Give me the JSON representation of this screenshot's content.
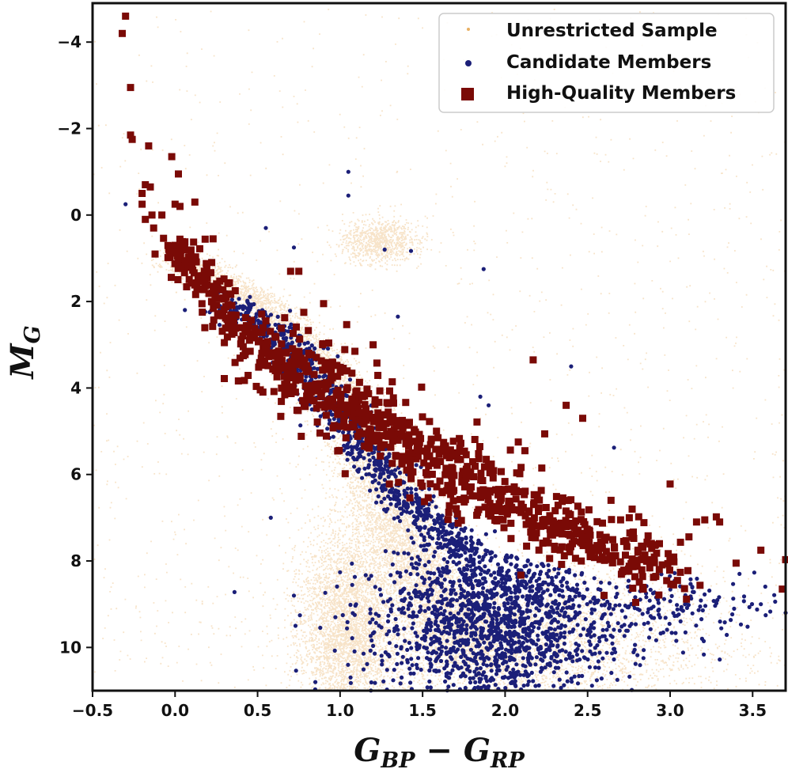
{
  "chart_data": {
    "type": "scatter",
    "title": "",
    "xlabel": "G_BP − G_RP",
    "ylabel": "M_G",
    "xlabel_parts": {
      "main1": "G",
      "sub1": "BP",
      "minus": " − ",
      "main2": "G",
      "sub2": "RP"
    },
    "ylabel_parts": {
      "main": "M",
      "sub": "G"
    },
    "xlim": [
      -0.5,
      3.7
    ],
    "ylim": [
      11.0,
      -4.9
    ],
    "y_inverted": true,
    "xticks": [
      -0.5,
      0.0,
      0.5,
      1.0,
      1.5,
      2.0,
      2.5,
      3.0,
      3.5
    ],
    "xtick_labels": [
      "−0.5",
      "0.0",
      "0.5",
      "1.0",
      "1.5",
      "2.0",
      "2.5",
      "3.0",
      "3.5"
    ],
    "yticks": [
      -4,
      -2,
      0,
      2,
      4,
      6,
      8,
      10
    ],
    "ytick_labels": [
      "−4",
      "−2",
      "0",
      "2",
      "4",
      "6",
      "8",
      "10"
    ],
    "grid": false,
    "legend_position": "top-right",
    "legend": [
      {
        "label": "Unrestricted Sample",
        "marker": "dot-small",
        "color": "#e8b062"
      },
      {
        "label": "Candidate Members",
        "marker": "circle",
        "color": "#1b1f78"
      },
      {
        "label": "High-Quality Members",
        "marker": "square",
        "color": "#7a0a06"
      }
    ],
    "series": [
      {
        "name": "Unrestricted Sample",
        "color": "#e8b062",
        "marker": "dot-small",
        "density_regions": [
          {
            "label": "main sequence",
            "ridge": [
              [
                0.0,
                1.0
              ],
              [
                0.5,
                2.0
              ],
              [
                0.8,
                3.2
              ],
              [
                1.0,
                4.2
              ],
              [
                1.2,
                5.5
              ],
              [
                1.3,
                6.5
              ],
              [
                1.4,
                7.5
              ],
              [
                1.5,
                8.5
              ],
              [
                1.7,
                9.5
              ],
              [
                1.9,
                10.5
              ]
            ],
            "spread": 0.12
          },
          {
            "label": "white dwarf / faint blue tail",
            "center": [
              1.05,
              9.5
            ],
            "spread_x": 0.15,
            "spread_y": 1.2
          },
          {
            "label": "red clump",
            "center": [
              1.25,
              0.6
            ],
            "spread_x": 0.12,
            "spread_y": 0.25
          },
          {
            "label": "faint red",
            "center": [
              2.1,
              9.8
            ],
            "spread_x": 0.55,
            "spread_y": 0.9
          }
        ]
      },
      {
        "name": "Candidate Members",
        "color": "#1b1f78",
        "marker": "circle",
        "points": [
          [
            -0.3,
            -0.25
          ],
          [
            0.55,
            0.3
          ],
          [
            0.72,
            0.75
          ],
          [
            1.05,
            -1.0
          ],
          [
            1.05,
            -0.45
          ],
          [
            1.27,
            0.8
          ],
          [
            1.43,
            0.83
          ],
          [
            1.87,
            1.25
          ],
          [
            1.35,
            2.35
          ],
          [
            2.4,
            3.5
          ],
          [
            1.85,
            4.2
          ],
          [
            1.9,
            4.4
          ],
          [
            2.66,
            5.38
          ],
          [
            0.36,
            8.72
          ],
          [
            0.58,
            7.0
          ],
          [
            0.72,
            8.8
          ],
          [
            0.73,
            9.5
          ],
          [
            0.85,
            10.8
          ],
          [
            1.9,
            10.9
          ],
          [
            3.55,
            9.0
          ],
          [
            3.7,
            9.2
          ]
        ],
        "clusters": [
          {
            "label": "main sequence members",
            "ridge": [
              [
                0.3,
                2.0
              ],
              [
                0.6,
                2.7
              ],
              [
                0.8,
                3.5
              ],
              [
                1.0,
                4.6
              ],
              [
                1.2,
                5.7
              ],
              [
                1.4,
                6.6
              ],
              [
                1.6,
                7.3
              ],
              [
                1.8,
                7.9
              ]
            ],
            "spread": 0.08
          },
          {
            "label": "faint members",
            "center": [
              1.95,
              9.4
            ],
            "spread_x": 0.38,
            "spread_y": 1.0
          },
          {
            "label": "faint red tail",
            "center": [
              3.0,
              9.1
            ],
            "spread_x": 0.35,
            "spread_y": 0.4
          }
        ]
      },
      {
        "name": "High-Quality Members",
        "color": "#7a0a06",
        "marker": "square",
        "points": [
          [
            -0.3,
            -4.6
          ],
          [
            -0.32,
            -4.2
          ],
          [
            -0.27,
            -2.95
          ],
          [
            -0.27,
            -1.85
          ],
          [
            -0.26,
            -1.75
          ],
          [
            -0.16,
            -1.6
          ],
          [
            -0.02,
            -1.35
          ],
          [
            0.02,
            -0.95
          ],
          [
            -0.18,
            -0.7
          ],
          [
            -0.15,
            -0.65
          ],
          [
            -0.2,
            -0.5
          ],
          [
            -0.2,
            -0.25
          ],
          [
            0.12,
            -0.3
          ],
          [
            0.0,
            -0.25
          ],
          [
            0.03,
            -0.2
          ],
          [
            -0.14,
            0.0
          ],
          [
            -0.18,
            0.1
          ],
          [
            -0.08,
            0.0
          ],
          [
            -0.13,
            0.3
          ],
          [
            0.23,
            0.55
          ],
          [
            0.75,
            1.3
          ],
          [
            0.7,
            1.3
          ],
          [
            0.9,
            2.05
          ],
          [
            0.78,
            2.25
          ],
          [
            1.09,
            3.15
          ],
          [
            1.2,
            3.0
          ],
          [
            2.17,
            3.35
          ],
          [
            2.37,
            4.4
          ],
          [
            2.47,
            4.7
          ],
          [
            2.24,
            5.06
          ],
          [
            2.08,
            5.25
          ],
          [
            2.12,
            5.45
          ],
          [
            3.0,
            6.22
          ],
          [
            2.7,
            7.05
          ],
          [
            2.77,
            6.8
          ],
          [
            3.28,
            6.98
          ],
          [
            3.3,
            7.1
          ],
          [
            3.21,
            7.05
          ],
          [
            3.16,
            7.1
          ],
          [
            3.55,
            7.75
          ],
          [
            3.7,
            7.97
          ],
          [
            3.68,
            8.65
          ],
          [
            3.4,
            8.05
          ]
        ],
        "clusters": [
          {
            "label": "upper main sequence",
            "ridge": [
              [
                -0.02,
                0.6
              ],
              [
                0.05,
                1.0
              ],
              [
                0.15,
                1.5
              ],
              [
                0.25,
                2.0
              ],
              [
                0.35,
                2.5
              ],
              [
                0.45,
                2.9
              ]
            ],
            "spread": 0.06
          },
          {
            "label": "binary / young sequence",
            "ridge": [
              [
                0.5,
                3.0
              ],
              [
                0.7,
                3.5
              ],
              [
                0.9,
                4.0
              ],
              [
                1.1,
                4.5
              ],
              [
                1.3,
                5.0
              ],
              [
                1.5,
                5.5
              ],
              [
                1.7,
                6.0
              ],
              [
                1.9,
                6.4
              ],
              [
                2.1,
                6.8
              ],
              [
                2.4,
                7.3
              ],
              [
                2.7,
                7.8
              ],
              [
                3.0,
                8.2
              ]
            ],
            "spread": 0.12
          }
        ]
      }
    ]
  }
}
